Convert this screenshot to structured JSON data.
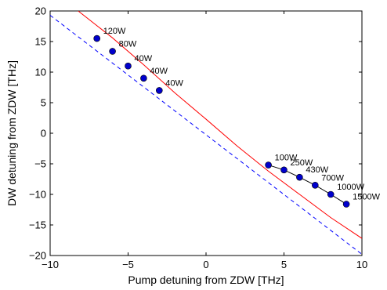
{
  "chart_data": {
    "type": "line",
    "title": "",
    "xlabel": "Pump detuning from ZDW [THz]",
    "ylabel": "DW detuning from ZDW [THz]",
    "xlim": [
      -10,
      10
    ],
    "ylim": [
      -20,
      20
    ],
    "xticks": [
      "−10",
      "−5",
      "0",
      "5",
      "10"
    ],
    "yticks": [
      "−20",
      "−15",
      "−10",
      "−5",
      "0",
      "5",
      "10",
      "15",
      "20"
    ],
    "grid": false,
    "legend": "none",
    "series": [
      {
        "style": "solid",
        "color": "#ff0000",
        "points": [
          [
            -8.2,
            20
          ],
          [
            -6,
            15.6
          ],
          [
            -4,
            11.2
          ],
          [
            -2,
            6.6
          ],
          [
            0,
            2.3
          ],
          [
            2,
            -2.1
          ],
          [
            4,
            -6.2
          ],
          [
            6,
            -10.0
          ],
          [
            8,
            -13.8
          ],
          [
            10,
            -17.2
          ]
        ]
      },
      {
        "style": "dashed",
        "color": "#0000ff",
        "points": [
          [
            -10,
            19.3
          ],
          [
            10,
            -19.8
          ]
        ]
      },
      {
        "style": "markers",
        "color": "#0000cc",
        "points": [
          [
            -7,
            15.5
          ],
          [
            -6,
            13.4
          ],
          [
            -5,
            11.0
          ],
          [
            -4,
            9.0
          ],
          [
            -3,
            7.0
          ]
        ],
        "labels": [
          "120W",
          "80W",
          "40W",
          "40W",
          "40W"
        ]
      },
      {
        "style": "line-markers",
        "color": "#0000cc",
        "points": [
          [
            4,
            -5.2
          ],
          [
            5,
            -6.0
          ],
          [
            6,
            -7.2
          ],
          [
            7,
            -8.5
          ],
          [
            8,
            -10.0
          ],
          [
            9,
            -11.6
          ]
        ],
        "labels": [
          "100W",
          "250W",
          "430W",
          "700W",
          "1000W",
          "1500W"
        ]
      }
    ]
  }
}
